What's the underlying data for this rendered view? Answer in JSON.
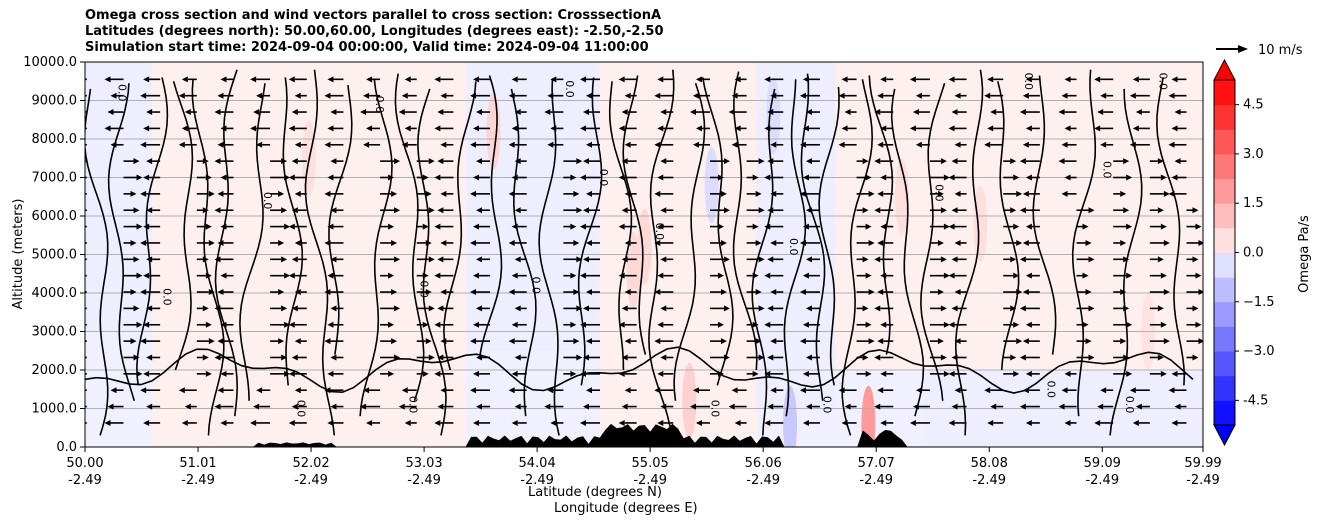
{
  "chart_data": {
    "type": "contour-cross-section",
    "title_lines": [
      "Omega cross section and wind vectors parallel to cross section: CrosssectionA",
      "Latitudes (degrees north): 50.00,60.00, Longitudes (degrees east): -2.50,-2.50",
      "Simulation start time: 2024-09-04 00:00:00, Valid time: 2024-09-04 11:00:00"
    ],
    "ylabel": "Altitude (meters)",
    "xlabel_lat": "Latitude (degrees N)",
    "xlabel_lon": "Longitude (degrees E)",
    "ylim": [
      0,
      10000
    ],
    "yticks": [
      "0.0",
      "1000.0",
      "2000.0",
      "3000.0",
      "4000.0",
      "5000.0",
      "6000.0",
      "7000.0",
      "8000.0",
      "9000.0",
      "10000.0"
    ],
    "xlim_lat": [
      50.0,
      59.99
    ],
    "xticks": [
      {
        "lat": 50.0,
        "lat_label": "50.00",
        "lon_label": "-2.49"
      },
      {
        "lat": 51.01,
        "lat_label": "51.01",
        "lon_label": "-2.49"
      },
      {
        "lat": 52.02,
        "lat_label": "52.02",
        "lon_label": "-2.49"
      },
      {
        "lat": 53.03,
        "lat_label": "53.03",
        "lon_label": "-2.49"
      },
      {
        "lat": 54.04,
        "lat_label": "54.04",
        "lon_label": "-2.49"
      },
      {
        "lat": 55.05,
        "lat_label": "55.05",
        "lon_label": "-2.49"
      },
      {
        "lat": 56.06,
        "lat_label": "56.06",
        "lon_label": "-2.49"
      },
      {
        "lat": 57.07,
        "lat_label": "57.07",
        "lon_label": "-2.49"
      },
      {
        "lat": 58.08,
        "lat_label": "58.08",
        "lon_label": "-2.49"
      },
      {
        "lat": 59.09,
        "lat_label": "59.09",
        "lon_label": "-2.49"
      },
      {
        "lat": 59.99,
        "lat_label": "59.99",
        "lon_label": "-2.49"
      }
    ],
    "contour_label": "0.0",
    "colorbar": {
      "label": "Omega Pa/s",
      "range": [
        -5.25,
        5.25
      ],
      "ticks": [
        "-4.5",
        "−3.0",
        "−1.5",
        "0.0",
        "1.5",
        "3.0",
        "4.5"
      ],
      "tick_values": [
        -4.5,
        -3.0,
        -1.5,
        0.0,
        1.5,
        3.0,
        4.5
      ],
      "negative_color": "#0000ff",
      "positive_color": "#ff0000",
      "extend": "both"
    },
    "quiver_key": {
      "label": "10 m/s",
      "value_ms": 10
    },
    "wind_field_description": "predominantly northerly flow (arrows pointing left) aloft, southerly (pointing right) mid-levels in places",
    "omega_regions": [
      {
        "lat_min": 50.0,
        "lat_max": 50.6,
        "alt_min": 3000,
        "alt_max": 10000,
        "sign": "negative",
        "value": -0.3
      },
      {
        "lat_min": 50.6,
        "lat_max": 53.4,
        "alt_min": 0,
        "alt_max": 10000,
        "sign": "positive",
        "value": 0.3
      },
      {
        "lat_min": 53.4,
        "lat_max": 54.6,
        "alt_min": 2500,
        "alt_max": 10000,
        "sign": "negative",
        "value": -0.3
      },
      {
        "lat_min": 54.6,
        "lat_max": 56.0,
        "alt_min": 0,
        "alt_max": 10000,
        "sign": "positive",
        "value": 0.3
      },
      {
        "lat_min": 56.0,
        "lat_max": 56.7,
        "alt_min": 1000,
        "alt_max": 10000,
        "sign": "negative",
        "value": -0.3
      },
      {
        "lat_min": 56.7,
        "lat_max": 59.99,
        "alt_min": 2000,
        "alt_max": 10000,
        "sign": "positive",
        "value": 0.3
      },
      {
        "lat_min": 57.5,
        "lat_max": 59.99,
        "alt_min": 0,
        "alt_max": 2000,
        "sign": "negative",
        "value": -0.2
      }
    ]
  },
  "colors": {
    "axis": "#000000",
    "grid": "#b0b0b0",
    "terrain": "#000000",
    "contour": "#000000",
    "arrow": "#000000"
  }
}
